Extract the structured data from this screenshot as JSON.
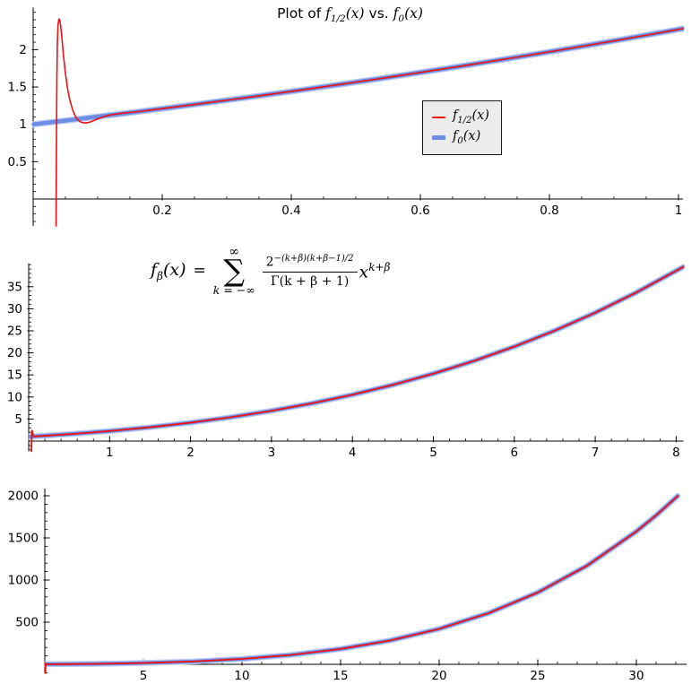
{
  "figure": {
    "background": "#ffffff",
    "axis_color": "#000000"
  },
  "title": {
    "prefix": "Plot of ",
    "f1_base": "f",
    "f1_sub": "1/2",
    "f1_args": "(x)",
    "mid": " vs. ",
    "f2_base": "f",
    "f2_sub": "0",
    "f2_args": "(x)"
  },
  "legend": {
    "background": "#ececec",
    "border_color": "#1a1a1a",
    "items": [
      {
        "swatch_color": "#ee1111",
        "swatch_height": 2.5,
        "base": "f",
        "sub": "1/2",
        "args": "(x)"
      },
      {
        "swatch_color": "#6d8ce4",
        "swatch_height": 5,
        "base": "f",
        "sub": "0",
        "args": "(x)"
      }
    ]
  },
  "formula": {
    "lhs_base": "f",
    "lhs_sub": "β",
    "lhs_args": "(x)",
    "equals": "=",
    "sum_upper": "∞",
    "sum_symbol": "∑",
    "sum_lower": "k = −∞",
    "num_base": "2",
    "num_exp": "−(k+β)(k+β−1)/2",
    "den": "Γ(k + β + 1)",
    "tail_base": "x",
    "tail_exp": "k+β"
  },
  "chart_data": [
    {
      "type": "line",
      "title": "Plot of f_{1/2}(x) vs. f_0(x)",
      "xlim": [
        0,
        1.007
      ],
      "ylim": [
        -0.36,
        2.565
      ],
      "xticks": [
        0.2,
        0.4,
        0.6,
        0.8,
        1
      ],
      "xtick_labels": [
        "0.2",
        "0.4",
        "0.6",
        "0.8",
        "1"
      ],
      "yticks": [
        0.5,
        1,
        1.5,
        2
      ],
      "ytick_labels": [
        "0.5",
        "1",
        "1.5",
        "2"
      ],
      "xminor": 0.05,
      "yminor": 0.1,
      "grid": false,
      "legend_position": "center right",
      "series": [
        {
          "name": "f_0(x)",
          "color": "#6d8ce4",
          "halo": "#bdccf4",
          "width": 4.5,
          "halo_width": 7,
          "points": [
            [
              0,
              1
            ],
            [
              0.05,
              1.0506
            ],
            [
              0.1,
              1.1025
            ],
            [
              0.15,
              1.1557
            ],
            [
              0.2,
              1.2102
            ],
            [
              0.25,
              1.266
            ],
            [
              0.3,
              1.3231
            ],
            [
              0.35,
              1.3815
            ],
            [
              0.4,
              1.4414
            ],
            [
              0.45,
              1.5026
            ],
            [
              0.5,
              1.5651
            ],
            [
              0.55,
              1.6292
            ],
            [
              0.6,
              1.6946
            ],
            [
              0.65,
              1.7615
            ],
            [
              0.7,
              1.8298
            ],
            [
              0.75,
              1.8996
            ],
            [
              0.8,
              1.9709
            ],
            [
              0.85,
              2.0438
            ],
            [
              0.9,
              2.1181
            ],
            [
              0.95,
              2.194
            ],
            [
              1.0,
              2.2715
            ],
            [
              1.007,
              2.282
            ]
          ]
        },
        {
          "name": "f_{1/2}(x)",
          "color": "#ee1111",
          "width": 1.6,
          "points": [
            [
              0.0355,
              -0.36
            ],
            [
              0.0358,
              0.2
            ],
            [
              0.0362,
              0.9
            ],
            [
              0.0367,
              1.55
            ],
            [
              0.0374,
              2.05
            ],
            [
              0.0384,
              2.32
            ],
            [
              0.0398,
              2.41
            ],
            [
              0.0412,
              2.4
            ],
            [
              0.0428,
              2.31
            ],
            [
              0.0448,
              2.13
            ],
            [
              0.047,
              1.92
            ],
            [
              0.05,
              1.68
            ],
            [
              0.0535,
              1.47
            ],
            [
              0.057,
              1.32
            ],
            [
              0.061,
              1.2
            ],
            [
              0.065,
              1.115
            ],
            [
              0.069,
              1.063
            ],
            [
              0.0735,
              1.032
            ],
            [
              0.078,
              1.02
            ],
            [
              0.0825,
              1.02
            ],
            [
              0.087,
              1.028
            ],
            [
              0.092,
              1.043
            ],
            [
              0.098,
              1.065
            ],
            [
              0.105,
              1.09
            ],
            [
              0.112,
              1.11
            ],
            [
              0.12,
              1.127
            ],
            [
              0.13,
              1.14
            ],
            [
              0.14,
              1.152
            ],
            [
              0.155,
              1.163
            ],
            [
              0.17,
              1.178
            ],
            [
              0.19,
              1.2
            ],
            [
              0.21,
              1.222
            ],
            [
              0.25,
              1.266
            ],
            [
              0.3,
              1.3231
            ],
            [
              0.35,
              1.3815
            ],
            [
              0.4,
              1.4414
            ],
            [
              0.45,
              1.5026
            ],
            [
              0.5,
              1.5651
            ],
            [
              0.55,
              1.6292
            ],
            [
              0.6,
              1.6946
            ],
            [
              0.65,
              1.7615
            ],
            [
              0.7,
              1.8298
            ],
            [
              0.75,
              1.8996
            ],
            [
              0.8,
              1.9709
            ],
            [
              0.85,
              2.0438
            ],
            [
              0.9,
              2.1181
            ],
            [
              0.95,
              2.194
            ],
            [
              1.0,
              2.2715
            ],
            [
              1.007,
              2.282
            ]
          ]
        }
      ]
    },
    {
      "type": "line",
      "annotation": "f_β(x) = Σ_{k=−∞}^{∞} 2^{−(k+β)(k+β−1)/2}/Γ(k+β+1) · x^{k+β}",
      "xlim": [
        0,
        8.09
      ],
      "ylim": [
        -2.3,
        40.3
      ],
      "xticks": [
        1,
        2,
        3,
        4,
        5,
        6,
        7,
        8
      ],
      "xtick_labels": [
        "1",
        "2",
        "3",
        "4",
        "5",
        "6",
        "7",
        "8"
      ],
      "yticks": [
        5,
        10,
        15,
        20,
        25,
        30,
        35
      ],
      "ytick_labels": [
        "5",
        "10",
        "15",
        "20",
        "25",
        "30",
        "35"
      ],
      "xminor": 0.2,
      "yminor": 1,
      "grid": false,
      "series": [
        {
          "name": "f_0(x)",
          "color": "#6d8ce4",
          "halo": "#bdccf4",
          "width": 4,
          "halo_width": 6.5,
          "points": [
            [
              0,
              1
            ],
            [
              0.5,
              1.5651
            ],
            [
              1,
              2.2715
            ],
            [
              1.5,
              3.1362
            ],
            [
              2,
              4.1774
            ],
            [
              2.5,
              5.4143
            ],
            [
              3,
              6.8673
            ],
            [
              3.5,
              8.5578
            ],
            [
              4,
              10.5086
            ],
            [
              4.5,
              12.7434
            ],
            [
              5,
              15.2874
            ],
            [
              5.5,
              18.1669
            ],
            [
              6,
              21.4097
            ],
            [
              6.5,
              25.0445
            ],
            [
              7,
              29.1021
            ],
            [
              7.5,
              33.6148
            ],
            [
              8,
              38.6113
            ],
            [
              8.09,
              39.52
            ]
          ]
        },
        {
          "name": "f_{1/2}(x)",
          "color": "#ee1111",
          "width": 1.8,
          "points": [
            [
              0.034,
              -2.3
            ],
            [
              0.036,
              -0.5
            ],
            [
              0.038,
              1.2
            ],
            [
              0.04,
              2.41
            ],
            [
              0.044,
              2.3
            ],
            [
              0.05,
              1.68
            ],
            [
              0.06,
              1.22
            ],
            [
              0.078,
              1.02
            ],
            [
              0.1,
              1.08
            ],
            [
              0.2,
              1.21
            ],
            [
              0.35,
              1.3815
            ],
            [
              0.5,
              1.5651
            ],
            [
              0.75,
              1.8996
            ],
            [
              1,
              2.2715
            ],
            [
              1.5,
              3.1362
            ],
            [
              2,
              4.1774
            ],
            [
              2.5,
              5.4143
            ],
            [
              3,
              6.8673
            ],
            [
              3.5,
              8.5578
            ],
            [
              4,
              10.5086
            ],
            [
              4.5,
              12.7434
            ],
            [
              5,
              15.2874
            ],
            [
              5.5,
              18.1669
            ],
            [
              6,
              21.4097
            ],
            [
              6.5,
              25.0445
            ],
            [
              7,
              29.1021
            ],
            [
              7.5,
              33.6148
            ],
            [
              8,
              38.6113
            ],
            [
              8.09,
              39.52
            ]
          ]
        }
      ]
    },
    {
      "type": "line",
      "xlim": [
        0,
        32.55
      ],
      "ylim": [
        -110,
        2085
      ],
      "xticks": [
        5,
        10,
        15,
        20,
        25,
        30
      ],
      "xtick_labels": [
        "5",
        "10",
        "15",
        "20",
        "25",
        "30"
      ],
      "yticks": [
        500,
        1000,
        1500,
        2000
      ],
      "ytick_labels": [
        "500",
        "1000",
        "1500",
        "2000"
      ],
      "xminor": 1,
      "yminor": 100,
      "grid": false,
      "series": [
        {
          "name": "f_0(x)",
          "color": "#6d8ce4",
          "halo": "#bdccf4",
          "width": 4,
          "halo_width": 6.5,
          "points": [
            [
              0,
              1
            ],
            [
              2.5,
              5.41
            ],
            [
              5,
              15.29
            ],
            [
              7.5,
              33.61
            ],
            [
              10,
              64.2
            ],
            [
              12.5,
              111.8
            ],
            [
              15,
              182.2
            ],
            [
              17.5,
              282.4
            ],
            [
              20,
              420.7
            ],
            [
              22.5,
              606.9
            ],
            [
              25,
              852.5
            ],
            [
              27.5,
              1170.7
            ],
            [
              30,
              1576.6
            ],
            [
              31,
              1767.4
            ],
            [
              32.1,
              1998
            ]
          ]
        },
        {
          "name": "f_{1/2}(x)",
          "color": "#ee1111",
          "width": 1.8,
          "points": [
            [
              0.03,
              -105
            ],
            [
              0.038,
              -30
            ],
            [
              0.042,
              15
            ],
            [
              0.05,
              2.4
            ],
            [
              0.3,
              1.35
            ],
            [
              1,
              2.27
            ],
            [
              2.5,
              5.41
            ],
            [
              5,
              15.29
            ],
            [
              7.5,
              33.61
            ],
            [
              10,
              64.2
            ],
            [
              12.5,
              111.8
            ],
            [
              15,
              182.2
            ],
            [
              17.5,
              282.4
            ],
            [
              20,
              420.7
            ],
            [
              22.5,
              606.9
            ],
            [
              25,
              852.5
            ],
            [
              27.5,
              1170.7
            ],
            [
              30,
              1576.6
            ],
            [
              31,
              1767.4
            ],
            [
              32.1,
              1998
            ]
          ]
        }
      ]
    }
  ]
}
